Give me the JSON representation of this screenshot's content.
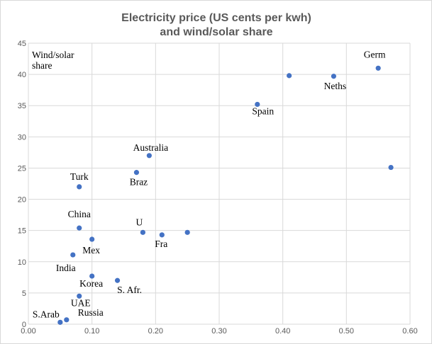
{
  "chart_data": {
    "type": "scatter",
    "title": [
      "Electricity price (US cents per kwh)",
      "and wind/solar share"
    ],
    "xlabel": "",
    "ylabel": [
      "Wind/solar",
      "share"
    ],
    "xlim": [
      0,
      0.6
    ],
    "ylim": [
      0,
      45
    ],
    "xticks": [
      "0.00",
      "0.10",
      "0.20",
      "0.30",
      "0.40",
      "0.50",
      "0.60"
    ],
    "yticks": [
      "0",
      "5",
      "10",
      "15",
      "20",
      "25",
      "30",
      "35",
      "40",
      "45"
    ],
    "grid": true,
    "marker_color": "#4472c4",
    "points": [
      {
        "label": "Germ",
        "x": 0.55,
        "y": 41.0
      },
      {
        "label": "Neths",
        "x": 0.48,
        "y": 39.7
      },
      {
        "label": "",
        "x": 0.41,
        "y": 39.8
      },
      {
        "label": "Spain",
        "x": 0.36,
        "y": 35.2
      },
      {
        "label": "",
        "x": 0.57,
        "y": 25.1
      },
      {
        "label": "Australia",
        "x": 0.19,
        "y": 27.0
      },
      {
        "label": "Braz",
        "x": 0.17,
        "y": 24.3
      },
      {
        "label": "Turk",
        "x": 0.08,
        "y": 22.0
      },
      {
        "label": "China",
        "x": 0.08,
        "y": 15.4
      },
      {
        "label": "Mex",
        "x": 0.1,
        "y": 13.6
      },
      {
        "label": "U",
        "x": 0.18,
        "y": 14.7
      },
      {
        "label": "Fra",
        "x": 0.21,
        "y": 14.3
      },
      {
        "label": "",
        "x": 0.25,
        "y": 14.7
      },
      {
        "label": "India",
        "x": 0.07,
        "y": 11.1
      },
      {
        "label": "Korea",
        "x": 0.1,
        "y": 7.7
      },
      {
        "label": "S. Afr.",
        "x": 0.14,
        "y": 7.0
      },
      {
        "label": "UAE",
        "x": 0.08,
        "y": 4.5
      },
      {
        "label": "S.Arab",
        "x": 0.05,
        "y": 0.3
      },
      {
        "label": "Russia",
        "x": 0.06,
        "y": 0.7
      }
    ]
  }
}
